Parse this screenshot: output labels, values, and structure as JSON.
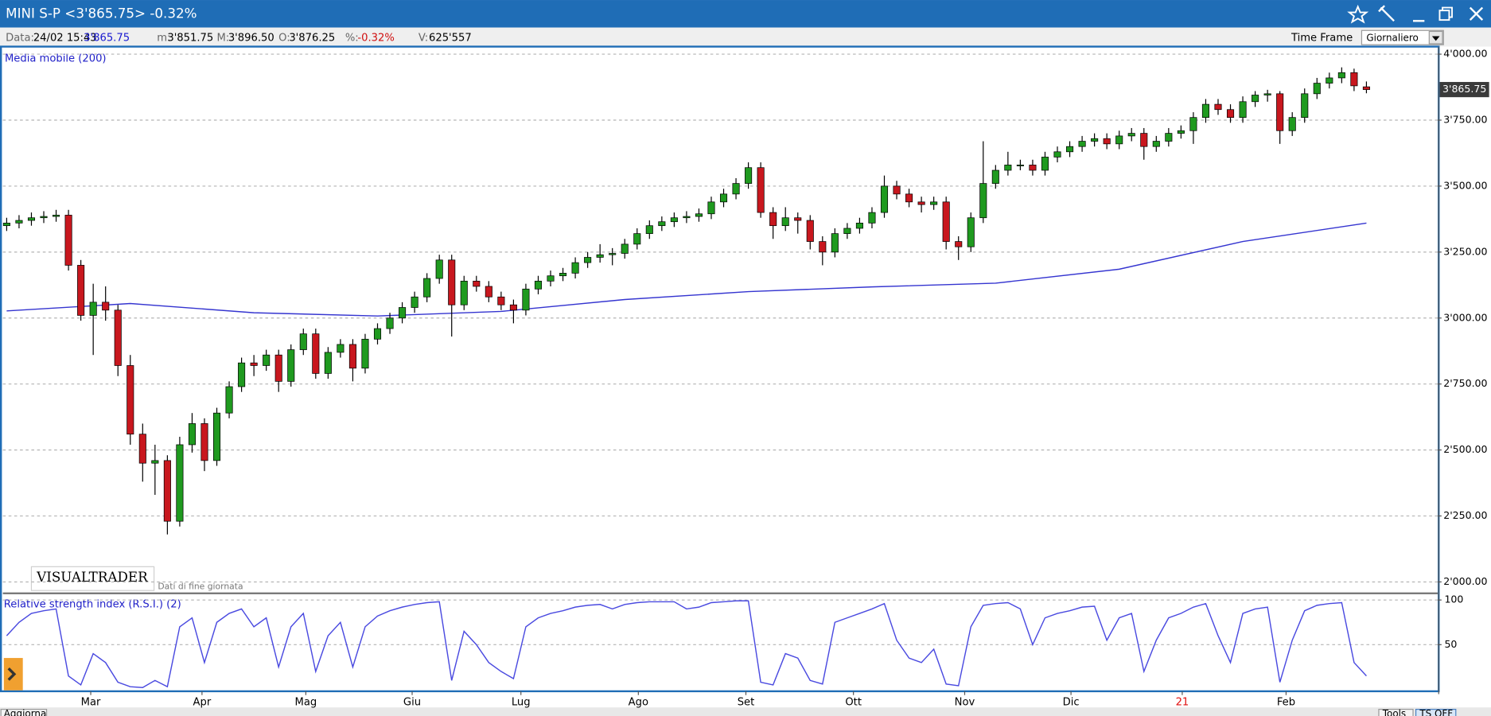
{
  "window": {
    "title": "MINI S-P <3'865.75> -0.32%"
  },
  "info_bar": {
    "items": [
      {
        "label": "Data:",
        "value": "24/02 15:43"
      },
      {
        "value": "3'865.75",
        "color": "#1a1ad0"
      },
      {
        "label": "m:",
        "value": "3'851.75"
      },
      {
        "label": "M:",
        "value": "3'896.50"
      },
      {
        "label": "O:",
        "value": "3'876.25"
      },
      {
        "label": "%:",
        "value": "-0.32%",
        "color": "#d01010"
      },
      {
        "label": "V:",
        "value": "625'557"
      }
    ],
    "time_frame_label": "Time Frame",
    "time_frame": "Giornaliero"
  },
  "chart_data": {
    "type": "candlestick",
    "indicator_label": "Media mobile (200)",
    "watermark": "VISUALTRADER",
    "note": "Dati di fine giornata",
    "last_price_label": "3'865.75",
    "up_color": "#1f9a1f",
    "down_color": "#c8171e",
    "grid": true,
    "xlim": [
      -0.31,
      115.77
    ],
    "ylim": [
      1964,
      4025
    ],
    "yticks": [
      {
        "value": 2000,
        "label": "2'000.00"
      },
      {
        "value": 2250,
        "label": "2'250.00"
      },
      {
        "value": 2500,
        "label": "2'500.00"
      },
      {
        "value": 2750,
        "label": "2'750.00"
      },
      {
        "value": 3000,
        "label": "3'000.00"
      },
      {
        "value": 3250,
        "label": "3'250.00"
      },
      {
        "value": 3500,
        "label": "3'500.00"
      },
      {
        "value": 3750,
        "label": "3'750.00"
      },
      {
        "value": 4000,
        "label": "4'000.00"
      }
    ],
    "xticks": [
      {
        "value": 6.8,
        "label": "Mar"
      },
      {
        "value": 15.8,
        "label": "Apr"
      },
      {
        "value": 24.2,
        "label": "Mag"
      },
      {
        "value": 32.8,
        "label": "Giu"
      },
      {
        "value": 41.6,
        "label": "Lug"
      },
      {
        "value": 51.1,
        "label": "Ago"
      },
      {
        "value": 59.8,
        "label": "Set"
      },
      {
        "value": 68.5,
        "label": "Ott"
      },
      {
        "value": 77.5,
        "label": "Nov"
      },
      {
        "value": 86.1,
        "label": "Dic"
      },
      {
        "value": 95.1,
        "label": "21",
        "color": "#e01010"
      },
      {
        "value": 103.5,
        "label": "Feb"
      }
    ],
    "series": [
      {
        "name": "MINI S-P",
        "open": [
          3350,
          3360,
          3370,
          3380,
          3385,
          3390,
          3200,
          3010,
          3060,
          3030,
          2820,
          2560,
          2450,
          2460,
          2230,
          2520,
          2600,
          2460,
          2640,
          2740,
          2830,
          2820,
          2860,
          2760,
          2880,
          2940,
          2790,
          2870,
          2900,
          2810,
          2920,
          2960,
          3000,
          3040,
          3080,
          3150,
          3220,
          3050,
          3140,
          3120,
          3080,
          3050,
          3030,
          3110,
          3140,
          3160,
          3170,
          3210,
          3230,
          3240,
          3245,
          3280,
          3320,
          3350,
          3365,
          3380,
          3385,
          3395,
          3440,
          3470,
          3510,
          3570,
          3400,
          3350,
          3380,
          3370,
          3290,
          3250,
          3320,
          3340,
          3360,
          3400,
          3500,
          3470,
          3440,
          3430,
          3440,
          3290,
          3270,
          3380,
          3510,
          3560,
          3580,
          3580,
          3560,
          3610,
          3630,
          3650,
          3670,
          3680,
          3660,
          3690,
          3700,
          3650,
          3670,
          3700,
          3710,
          3760,
          3810,
          3790,
          3760,
          3820,
          3845,
          3850,
          3710,
          3760,
          3850,
          3890,
          3910,
          3930,
          3876.25
        ],
        "high": [
          3380,
          3390,
          3400,
          3405,
          3410,
          3410,
          3220,
          3130,
          3120,
          3050,
          2860,
          2600,
          2520,
          2480,
          2550,
          2640,
          2620,
          2660,
          2760,
          2850,
          2860,
          2880,
          2880,
          2900,
          2960,
          2960,
          2890,
          2920,
          2920,
          2940,
          2980,
          3020,
          3060,
          3100,
          3170,
          3240,
          3240,
          3160,
          3160,
          3140,
          3100,
          3070,
          3130,
          3160,
          3180,
          3190,
          3230,
          3250,
          3280,
          3265,
          3300,
          3340,
          3370,
          3385,
          3400,
          3405,
          3415,
          3460,
          3490,
          3530,
          3590,
          3590,
          3420,
          3420,
          3400,
          3390,
          3310,
          3340,
          3360,
          3380,
          3420,
          3540,
          3520,
          3490,
          3460,
          3460,
          3460,
          3310,
          3400,
          3670,
          3580,
          3630,
          3600,
          3600,
          3630,
          3650,
          3670,
          3690,
          3700,
          3700,
          3710,
          3720,
          3720,
          3690,
          3720,
          3730,
          3780,
          3830,
          3830,
          3810,
          3840,
          3860,
          3865,
          3860,
          3780,
          3870,
          3910,
          3930,
          3950,
          3945,
          3896.5
        ],
        "low": [
          3330,
          3340,
          3350,
          3360,
          3365,
          3180,
          2990,
          2860,
          2990,
          2780,
          2520,
          2380,
          2330,
          2180,
          2210,
          2490,
          2420,
          2440,
          2620,
          2720,
          2780,
          2800,
          2720,
          2740,
          2860,
          2770,
          2770,
          2850,
          2760,
          2790,
          2900,
          2940,
          2980,
          3020,
          3060,
          3130,
          2930,
          3030,
          3100,
          3060,
          3030,
          2980,
          3010,
          3090,
          3120,
          3140,
          3150,
          3190,
          3210,
          3200,
          3225,
          3260,
          3300,
          3330,
          3345,
          3360,
          3365,
          3375,
          3420,
          3450,
          3490,
          3380,
          3300,
          3330,
          3320,
          3260,
          3200,
          3230,
          3300,
          3320,
          3340,
          3380,
          3450,
          3420,
          3400,
          3410,
          3260,
          3220,
          3250,
          3360,
          3490,
          3540,
          3560,
          3540,
          3540,
          3590,
          3610,
          3630,
          3650,
          3640,
          3640,
          3670,
          3600,
          3630,
          3650,
          3680,
          3660,
          3740,
          3770,
          3740,
          3740,
          3800,
          3820,
          3660,
          3690,
          3740,
          3830,
          3870,
          3890,
          3860,
          3851.75
        ],
        "close": [
          3360,
          3370,
          3380,
          3385,
          3390,
          3200,
          3010,
          3060,
          3030,
          2820,
          2560,
          2450,
          2460,
          2230,
          2520,
          2600,
          2460,
          2640,
          2740,
          2830,
          2820,
          2860,
          2760,
          2880,
          2940,
          2790,
          2870,
          2900,
          2810,
          2920,
          2960,
          3000,
          3040,
          3080,
          3150,
          3220,
          3050,
          3140,
          3120,
          3080,
          3050,
          3030,
          3110,
          3140,
          3160,
          3170,
          3210,
          3230,
          3240,
          3245,
          3280,
          3320,
          3350,
          3365,
          3380,
          3385,
          3395,
          3440,
          3470,
          3510,
          3570,
          3400,
          3350,
          3380,
          3370,
          3290,
          3250,
          3320,
          3340,
          3360,
          3400,
          3500,
          3470,
          3440,
          3430,
          3440,
          3290,
          3270,
          3380,
          3510,
          3560,
          3580,
          3580,
          3560,
          3610,
          3630,
          3650,
          3670,
          3680,
          3660,
          3690,
          3700,
          3650,
          3670,
          3700,
          3710,
          3760,
          3810,
          3790,
          3760,
          3820,
          3845,
          3850,
          3710,
          3760,
          3850,
          3890,
          3910,
          3930,
          3880,
          3865.75
        ]
      }
    ],
    "moving_average": {
      "color": "#3535d0",
      "x": [
        0,
        10,
        20,
        30,
        40,
        50,
        60,
        70,
        80,
        90,
        100,
        110
      ],
      "values": [
        3027,
        3055,
        3020,
        3008,
        3025,
        3070,
        3100,
        3118,
        3132,
        3185,
        3290,
        3360
      ]
    },
    "rsi": {
      "type": "line",
      "title": "Relative strength index (R.S.I.) (2)",
      "color": "#4a4ae0",
      "ylim": [
        0,
        100
      ],
      "yticks": [
        100,
        50
      ],
      "values": [
        60,
        75,
        85,
        88,
        90,
        15,
        5,
        40,
        30,
        8,
        3,
        2,
        10,
        3,
        70,
        80,
        30,
        75,
        85,
        90,
        70,
        80,
        25,
        70,
        85,
        20,
        60,
        75,
        25,
        70,
        82,
        88,
        92,
        95,
        97,
        98,
        10,
        65,
        50,
        30,
        20,
        12,
        70,
        80,
        85,
        88,
        92,
        94,
        95,
        90,
        95,
        97,
        98,
        98,
        98,
        90,
        92,
        97,
        98,
        99,
        99,
        8,
        5,
        40,
        35,
        10,
        6,
        75,
        80,
        85,
        90,
        96,
        55,
        35,
        30,
        45,
        6,
        4,
        70,
        94,
        96,
        97,
        90,
        50,
        80,
        85,
        88,
        92,
        93,
        55,
        80,
        85,
        20,
        55,
        80,
        85,
        92,
        96,
        60,
        30,
        85,
        90,
        92,
        8,
        55,
        88,
        94,
        96,
        97,
        30,
        15
      ]
    }
  },
  "footer": {
    "buttons": [
      "Aggiorna",
      "Tools",
      "TS OFF"
    ]
  }
}
